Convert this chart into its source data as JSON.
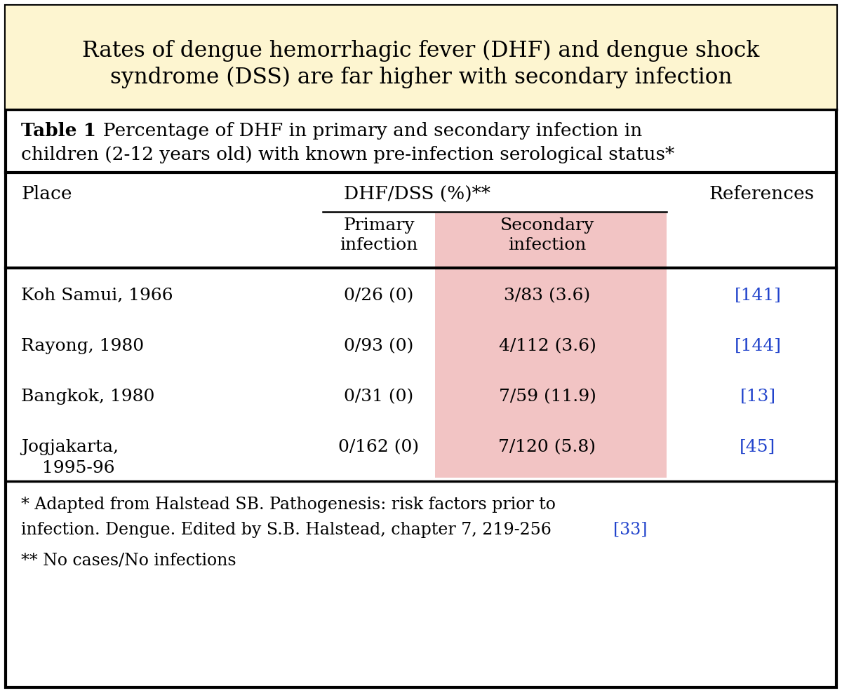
{
  "title_line1": "Rates of dengue hemorrhagic fever (DHF) and dengue shock",
  "title_line2": "syndrome (DSS) are far higher with secondary infection",
  "title_bg": "#fdf5d0",
  "table_caption_bold": "Table 1",
  "table_caption_rest1": "  Percentage of DHF in primary and secondary infection in",
  "table_caption_rest2": "children (2-12 years old) with known pre-infection serological status*",
  "rows": [
    {
      "place": "Koh Samui, 1966",
      "place2": null,
      "primary": "0/26 (0)",
      "secondary": "3/83 (3.6)",
      "ref": "[141]"
    },
    {
      "place": "Rayong, 1980",
      "place2": null,
      "primary": "0/93 (0)",
      "secondary": "4/112 (3.6)",
      "ref": "[144]"
    },
    {
      "place": "Bangkok, 1980",
      "place2": null,
      "primary": "0/31 (0)",
      "secondary": "7/59 (11.9)",
      "ref": "[13]"
    },
    {
      "place": "Jogjakarta,",
      "place2": "1995-96",
      "primary": "0/162 (0)",
      "secondary": "7/120 (5.8)",
      "ref": "[45]"
    }
  ],
  "footnote1a": "* Adapted from Halstead SB. Pathogenesis: risk factors prior to",
  "footnote1b": "infection. Dengue. Edited by S.B. Halstead, chapter 7, 219-256 ",
  "footnote1_ref": "[33]",
  "footnote2": "** No cases/No infections",
  "secondary_bg": "#f2c4c4",
  "border_color": "#000000",
  "ref_color": "#2244cc",
  "text_color": "#000000",
  "outer_bg": "#ffffff"
}
